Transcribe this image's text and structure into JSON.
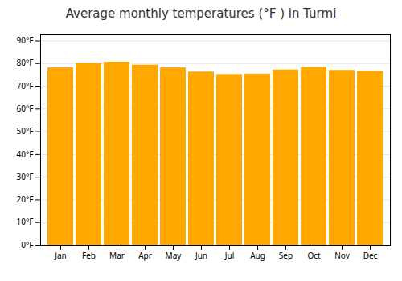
{
  "chart_data": {
    "type": "bar",
    "title": "Average monthly temperatures (°F ) in Turmi",
    "categories": [
      "Jan",
      "Feb",
      "Mar",
      "Apr",
      "May",
      "Jun",
      "Jul",
      "Aug",
      "Sep",
      "Oct",
      "Nov",
      "Dec"
    ],
    "values": [
      78.1,
      80.1,
      80.6,
      79.3,
      78.1,
      76.3,
      75.2,
      75.4,
      77.2,
      78.3,
      77.0,
      76.6
    ],
    "color": "#FFA800",
    "ylim": [
      0,
      93
    ],
    "yticks": [
      {
        "value": 0,
        "label": "0°F"
      },
      {
        "value": 10,
        "label": "10°F"
      },
      {
        "value": 20,
        "label": "20°F"
      },
      {
        "value": 30,
        "label": "30°F"
      },
      {
        "value": 40,
        "label": "40°F"
      },
      {
        "value": 50,
        "label": "50°F"
      },
      {
        "value": 60,
        "label": "60°F"
      },
      {
        "value": 70,
        "label": "70°F"
      },
      {
        "value": 80,
        "label": "80°F"
      },
      {
        "value": 90,
        "label": "90°F"
      }
    ],
    "grid": true
  }
}
